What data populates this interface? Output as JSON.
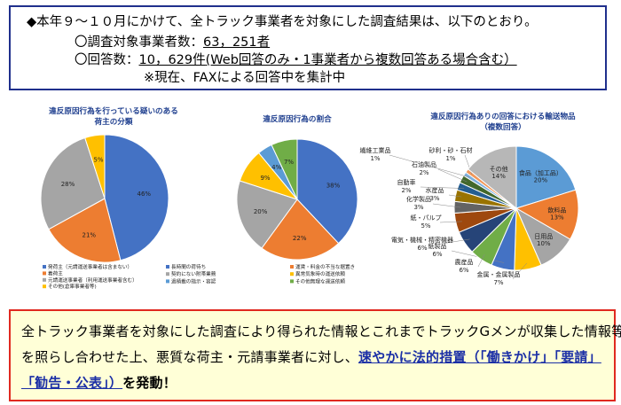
{
  "header": {
    "line1": "◆本年９～１０月にかけて、全トラック事業者を対象にした調査結果は、以下のとおり。",
    "line2_label": "〇調査対象事業者数：",
    "line2_value": "63，251者",
    "line3_label": "〇回答数：",
    "line3_value": "10，629件",
    "line3_note": "(Web回答のみ・1事業者から複数回答ある場合含む）",
    "line4": "※現在、FAXによる回答中を集計中"
  },
  "colors": {
    "blue": "#4472c4",
    "orange": "#ed7d31",
    "gray": "#a5a5a5",
    "yellow": "#ffc000",
    "lightblue": "#5b9bd5",
    "green": "#70ad47"
  },
  "chart_data": [
    {
      "type": "pie",
      "title_line1": "違反原因行為を行っている疑いのある",
      "title_line2": "荷主の分類",
      "labels": [
        "発荷主（元請運送事業者は含まない）",
        "着荷主",
        "元請運送事業者（利用運送事業者含む）",
        "その他(倉庫事業者等)"
      ],
      "values": [
        46,
        21,
        28,
        5
      ],
      "value_labels": [
        "46%",
        "21%",
        "28%",
        "5%"
      ],
      "colors": [
        "#4472c4",
        "#ed7d31",
        "#a5a5a5",
        "#ffc000"
      ]
    },
    {
      "type": "pie",
      "title": "違反原因行為の割合",
      "labels": [
        "長時間の荷待ち",
        "運賃・料金の不当な据置き",
        "契約にない附帯業務",
        "異常気象時の運送依頼",
        "過積載の指示・容認",
        "その他無理な運送依頼"
      ],
      "values": [
        38,
        22,
        20,
        9,
        4,
        7
      ],
      "value_labels": [
        "38%",
        "22%",
        "20%",
        "9%",
        "4%",
        "7%"
      ],
      "colors": [
        "#4472c4",
        "#ed7d31",
        "#a5a5a5",
        "#ffc000",
        "#5b9bd5",
        "#70ad47"
      ]
    },
    {
      "type": "pie",
      "title_line1": "違反原因行為ありの回答における輸送物品",
      "title_line2": "（複数回答）",
      "labels": [
        "食品（加工品）",
        "飲料品",
        "日用品",
        "金属・金属製品",
        "紙製品",
        "農産品",
        "電気・機械・精密機器",
        "紙・パルプ",
        "化学製品",
        "水産品",
        "自動車",
        "石油製品",
        "繊維工業品",
        "砂利・砂・石材",
        "その他"
      ],
      "values": [
        20,
        13,
        10,
        7,
        6,
        6,
        6,
        5,
        3,
        3,
        2,
        2,
        1,
        1,
        14
      ],
      "value_labels": [
        "20%",
        "13%",
        "10%",
        "7%",
        "6%",
        "6%",
        "6%",
        "5%",
        "3%",
        "3%",
        "2%",
        "2%",
        "1%",
        "1%",
        "14%"
      ],
      "colors": [
        "#5b9bd5",
        "#ed7d31",
        "#a5a5a5",
        "#ffc000",
        "#4472c4",
        "#70ad47",
        "#264478",
        "#9e480e",
        "#636363",
        "#997300",
        "#255e91",
        "#43682b",
        "#7cafdd",
        "#f1975a",
        "#b7b7b7"
      ]
    }
  ],
  "bottom": {
    "line1": "全トラック事業者を対象にした調査により得られた情報とこれまでトラックGメンが収集した情報等",
    "line2_plain": "を照らし合わせた上、悪質な荷主・元請事業者に対し、",
    "line2_emph": "速やかに法的措置（「働きかけ」「要請」",
    "line3_emph": "「勧告・公表」）",
    "line3_plain": "を発動！"
  }
}
